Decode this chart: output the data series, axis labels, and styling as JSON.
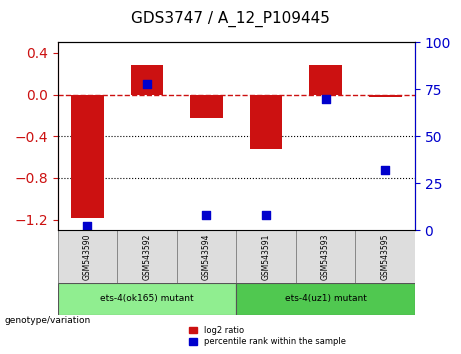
{
  "title": "GDS3747 / A_12_P109445",
  "samples": [
    "GSM543590",
    "GSM543592",
    "GSM543594",
    "GSM543591",
    "GSM543593",
    "GSM543595"
  ],
  "log2_ratio": [
    -1.18,
    0.28,
    -0.22,
    -0.52,
    0.28,
    -0.02
  ],
  "percentile_rank": [
    2,
    78,
    8,
    8,
    70,
    32
  ],
  "groups": [
    {
      "label": "ets-4(ok165) mutant",
      "samples": [
        0,
        1,
        2
      ],
      "color": "#90EE90"
    },
    {
      "label": "ets-4(uz1) mutant",
      "samples": [
        3,
        4,
        5
      ],
      "color": "#50C850"
    }
  ],
  "ylim_left": [
    -1.3,
    0.5
  ],
  "ylim_right": [
    0,
    100
  ],
  "bar_color": "#CC1111",
  "dot_color": "#0000CC",
  "ref_line_color": "#CC1111",
  "grid_color": "#000000",
  "background_plot": "#FFFFFF",
  "legend_red_label": "log2 ratio",
  "legend_blue_label": "percentile rank within the sample",
  "ylabel_left_color": "#CC1111",
  "ylabel_right_color": "#0000CC",
  "yticks_left": [
    0.4,
    0,
    -0.4,
    -0.8,
    -1.2
  ],
  "yticks_right": [
    100,
    75,
    50,
    25,
    0
  ],
  "bar_width": 0.55
}
